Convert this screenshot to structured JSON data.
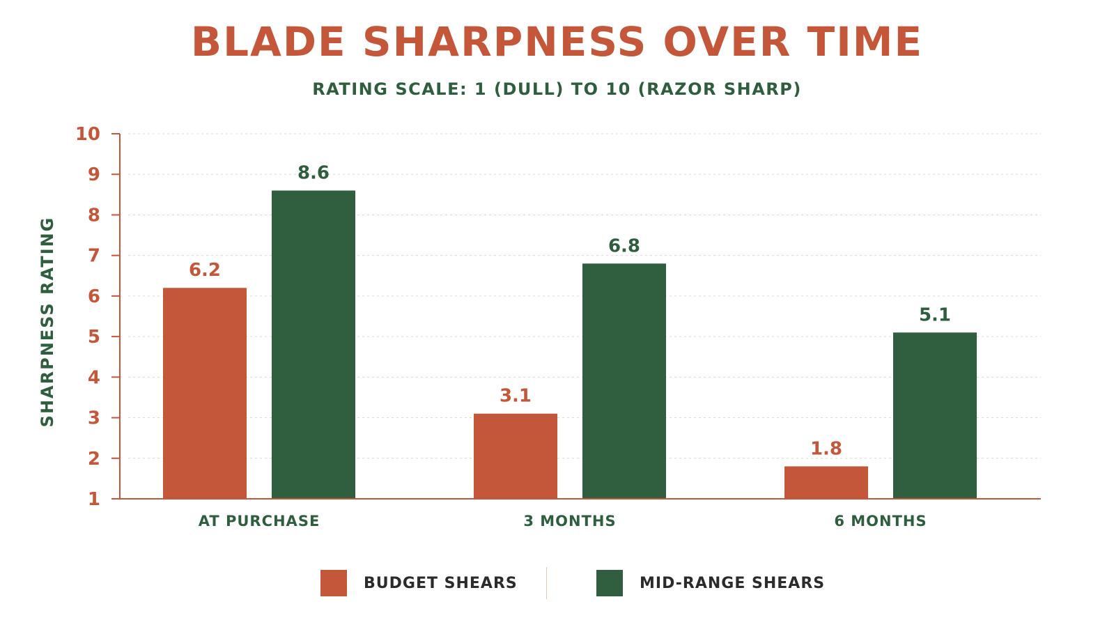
{
  "chart_data": {
    "type": "bar",
    "title": "BLADE SHARPNESS OVER TIME",
    "subtitle": "RATING SCALE: 1 (DULL) TO 10 (RAZOR SHARP)",
    "xlabel": "",
    "ylabel": "SHARPNESS RATING",
    "categories": [
      "AT PURCHASE",
      "3 MONTHS",
      "6 MONTHS"
    ],
    "series": [
      {
        "name": "BUDGET SHEARS",
        "values": [
          6.2,
          3.1,
          1.8
        ],
        "color": "#c4573a"
      },
      {
        "name": "MID-RANGE SHEARS",
        "values": [
          8.6,
          6.8,
          5.1
        ],
        "color": "#2f5f3f"
      }
    ],
    "ylim": [
      1,
      10
    ],
    "yticks": [
      "1",
      "2",
      "3",
      "4",
      "5",
      "6",
      "7",
      "8",
      "9",
      "10"
    ],
    "grid": true,
    "legend_position": "bottom"
  }
}
